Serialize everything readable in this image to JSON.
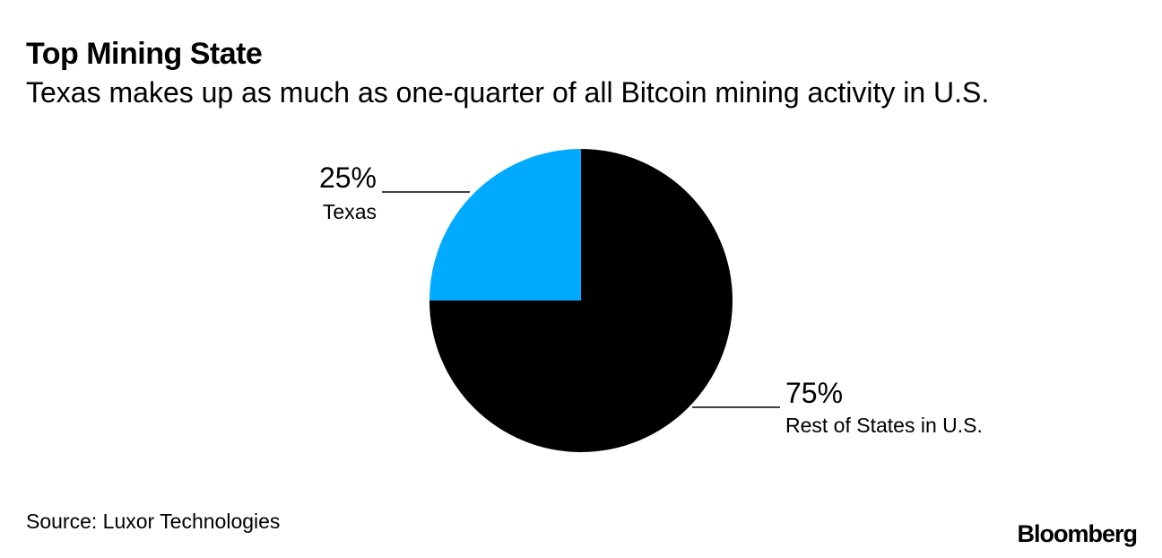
{
  "header": {
    "title": "Top Mining State",
    "subtitle": "Texas makes up as much as one-quarter of all Bitcoin mining activity in U.S."
  },
  "chart_data": {
    "type": "pie",
    "title": "Top Mining State",
    "subtitle": "Texas makes up as much as one-quarter of all Bitcoin mining activity in U.S.",
    "slices": [
      {
        "label": "Texas",
        "value": 25,
        "display": "25%",
        "color": "#00aaff"
      },
      {
        "label": "Rest of States in U.S.",
        "value": 75,
        "display": "75%",
        "color": "#000000"
      }
    ],
    "legend": "none"
  },
  "footer": {
    "source": "Source: Luxor Technologies",
    "brand": "Bloomberg"
  }
}
